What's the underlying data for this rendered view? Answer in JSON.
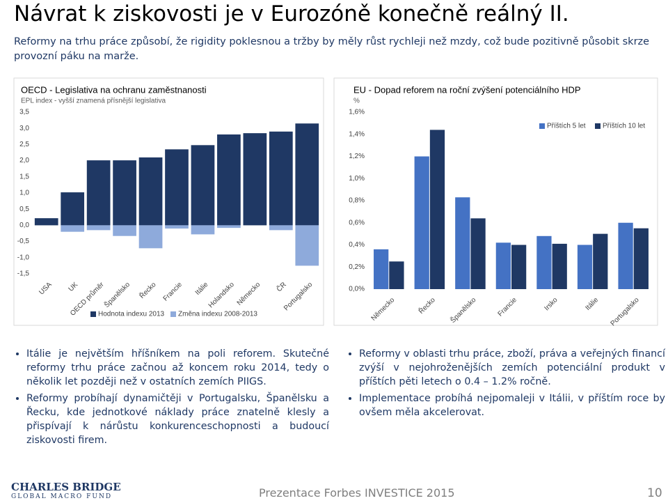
{
  "title": "Návrat k ziskovosti je v Eurozóně konečně reálný II.",
  "subtitle": "Reformy na trhu práce způsobí, že rigidity poklesnou a tržby by měly růst rychleji než mzdy, což bude pozitivně působit skrze provozní páku na marže.",
  "chart_data": [
    {
      "type": "bar",
      "overlap": true,
      "legend": "bottom",
      "title": "OECD - Legislativa na ochranu zaměstnanosti",
      "subtitle": "EPL index - vyšší znamená přísnější legislativa",
      "categories": [
        "USA",
        "UK",
        "OECD průměr",
        "Španělsko",
        "Řecko",
        "Francie",
        "Itálie",
        "Holandsko",
        "Německo",
        "ČR",
        "Portugalsko"
      ],
      "series": [
        {
          "name": "Hodnota indexu 2013",
          "color": "#1f3864",
          "values": [
            0.22,
            1.02,
            2.01,
            2.01,
            2.1,
            2.35,
            2.48,
            2.81,
            2.85,
            2.9,
            3.15
          ]
        },
        {
          "name": "Změna indexu 2008-2013",
          "color": "#8eaadb",
          "values": [
            0,
            -0.2,
            -0.15,
            -0.33,
            -0.71,
            -0.1,
            -0.28,
            -0.08,
            0,
            -0.15,
            -1.25
          ]
        }
      ],
      "ylim": [
        -1.5,
        3.5
      ],
      "yticks": [
        {
          "value": 3.5,
          "label": "3,5"
        },
        {
          "value": 3,
          "label": "3,0"
        },
        {
          "value": 2.5,
          "label": "2,5"
        },
        {
          "value": 2,
          "label": "2,0"
        },
        {
          "value": 1.5,
          "label": "1,5"
        },
        {
          "value": 1,
          "label": "1,0"
        },
        {
          "value": 0.5,
          "label": "0,5"
        },
        {
          "value": 0,
          "label": "0,0"
        },
        {
          "value": -0.5,
          "label": "-0,5"
        },
        {
          "value": -1,
          "label": "-1,0"
        },
        {
          "value": -1.5,
          "label": "-1,5"
        }
      ]
    },
    {
      "type": "bar",
      "overlap": false,
      "legend": "top-right",
      "title": "EU - Dopad reforem na roční zvýšení potenciálního HDP",
      "subtitle": "%",
      "categories": [
        "Německo",
        "Řecko",
        "Španělsko",
        "Francie",
        "Irsko",
        "Itálie",
        "Portugalsko"
      ],
      "series": [
        {
          "name": "Příštích 5 let",
          "color": "#4472c4",
          "values": [
            0.36,
            1.2,
            0.83,
            0.42,
            0.48,
            0.4,
            0.6
          ]
        },
        {
          "name": "Příštích 10 let",
          "color": "#1f3864",
          "values": [
            0.25,
            1.44,
            0.64,
            0.4,
            0.41,
            0.5,
            0.55
          ]
        }
      ],
      "ylim": [
        0,
        1.6
      ],
      "yticks": [
        {
          "value": 1.6,
          "label": "1,6%"
        },
        {
          "value": 1.4,
          "label": "1,4%"
        },
        {
          "value": 1.2,
          "label": "1,2%"
        },
        {
          "value": 1,
          "label": "1,0%"
        },
        {
          "value": 0.8,
          "label": "0,8%"
        },
        {
          "value": 0.6,
          "label": "0,6%"
        },
        {
          "value": 0.4,
          "label": "0,4%"
        },
        {
          "value": 0.2,
          "label": "0,2%"
        },
        {
          "value": 0,
          "label": "0,0%"
        }
      ]
    }
  ],
  "bullets_left": [
    "Itálie je největším hříšníkem na poli reforem. Skutečné reformy trhu práce začnou až koncem roku 2014, tedy o několik let později než v ostatních zemích PIIGS.",
    "Reformy probíhají dynamičtěji v Portugalsku, Španělsku a Řecku, kde jednotkové náklady práce znatelně klesly a přispívají k nárůstu konkurenceschopnosti a budoucí ziskovosti firem."
  ],
  "bullets_right": [
    "Reformy v oblasti trhu práce, zboží, práva a veřejných financí zvýší v nejohroženějších zemích potenciální produkt v příštích pěti letech o 0.4 – 1.2% ročně.",
    "Implementace probíhá nejpomaleji v Itálii, v příštím roce by ovšem měla akcelerovat."
  ],
  "footer": {
    "logo": "CHARLES BRIDGE",
    "logo_sub": "GLOBAL MACRO FUND",
    "text": "Prezentace Forbes INVESTICE 2015",
    "page": "10"
  }
}
